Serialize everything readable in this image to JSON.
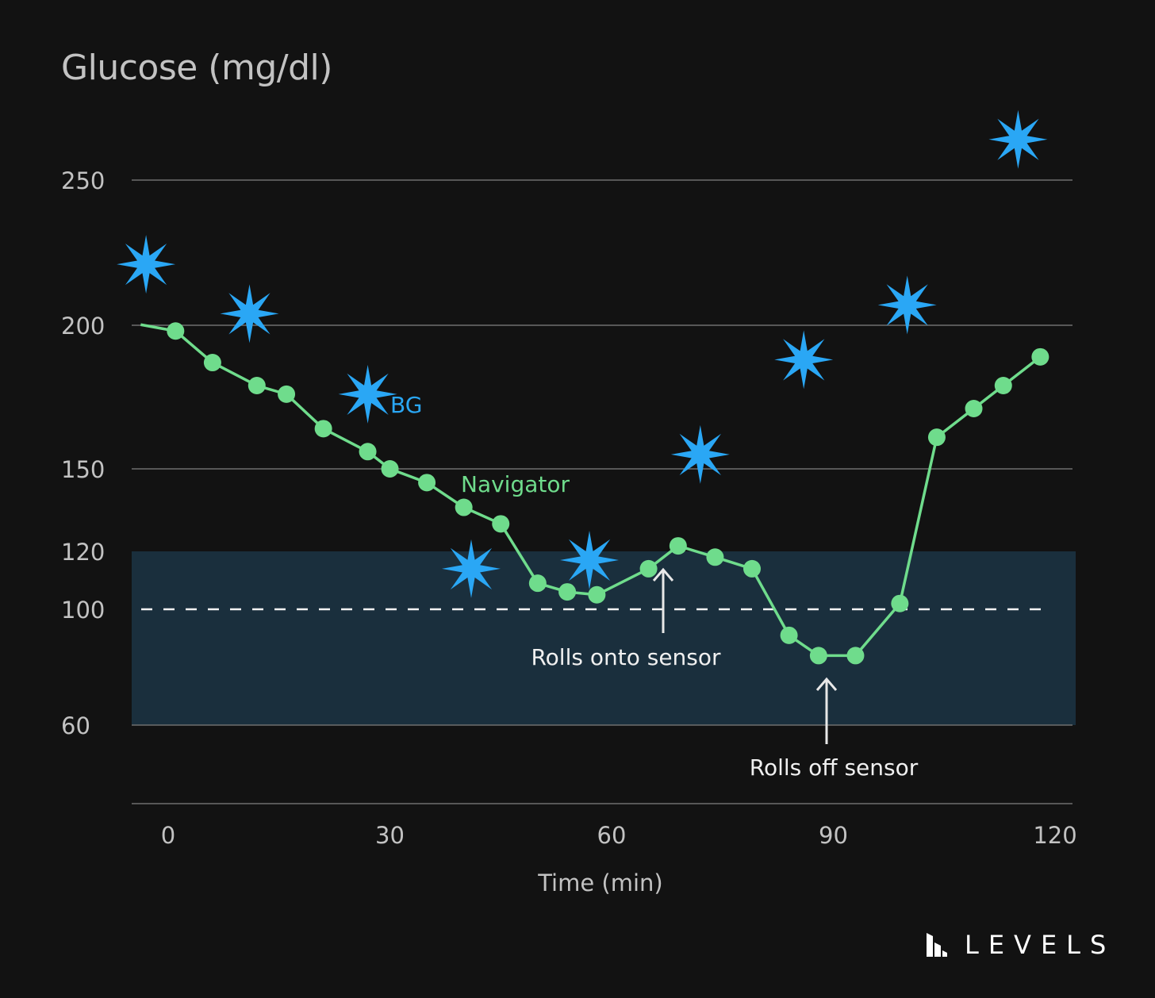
{
  "chart_data": {
    "type": "line",
    "title": "Glucose (mg/dl)",
    "xlabel": "Time (min)",
    "ylabel": "",
    "x_ticks": [
      "0",
      "30",
      "60",
      "90",
      "120"
    ],
    "y_ticks": [
      "250",
      "200",
      "150",
      "120",
      "100",
      "60"
    ],
    "target_range": [
      60,
      120
    ],
    "reference_line": 100,
    "series": [
      {
        "name": "Navigator",
        "color": "#6fdc8c",
        "points": [
          [
            1,
            198
          ],
          [
            6,
            187
          ],
          [
            12,
            179
          ],
          [
            16,
            176
          ],
          [
            21,
            164
          ],
          [
            27,
            156
          ],
          [
            30,
            150
          ],
          [
            35,
            145
          ],
          [
            40,
            136
          ],
          [
            45,
            130
          ],
          [
            50,
            109
          ],
          [
            54,
            106
          ],
          [
            58,
            105
          ],
          [
            65,
            114
          ],
          [
            69,
            122
          ],
          [
            74,
            118
          ],
          [
            79,
            114
          ],
          [
            84,
            91
          ],
          [
            88,
            84
          ],
          [
            93,
            84
          ],
          [
            99,
            102
          ],
          [
            104,
            161
          ],
          [
            109,
            171
          ],
          [
            113,
            179
          ],
          [
            118,
            189
          ]
        ]
      },
      {
        "name": "BG",
        "color": "#2aa7f5",
        "points": [
          [
            -3,
            221
          ],
          [
            11,
            204
          ],
          [
            27,
            176
          ],
          [
            41,
            114
          ],
          [
            57,
            117
          ],
          [
            72,
            155
          ],
          [
            86,
            188
          ],
          [
            100,
            207
          ],
          [
            115,
            264
          ]
        ]
      }
    ],
    "annotations": [
      "Rolls onto sensor",
      "Rolls off sensor"
    ]
  },
  "brand": {
    "logo_text": "LEVELS"
  }
}
